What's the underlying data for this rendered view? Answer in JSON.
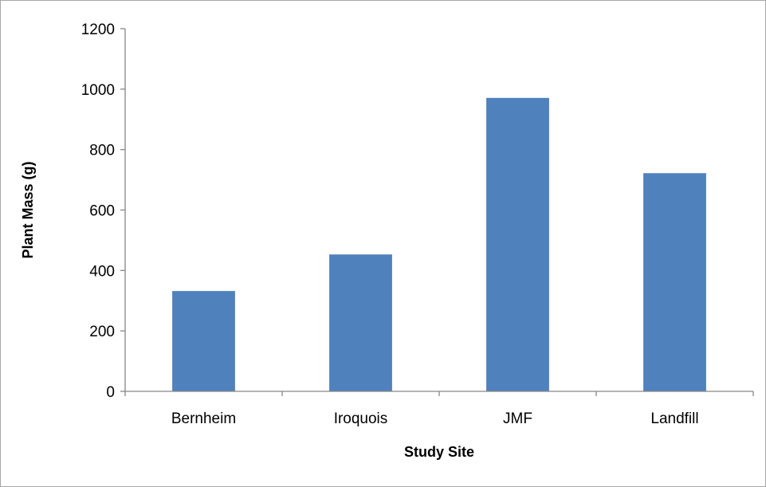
{
  "chart_data": {
    "type": "bar",
    "categories": [
      "Bernheim",
      "Iroquois",
      "JMF",
      "Landfill"
    ],
    "values": [
      332,
      453,
      971,
      722
    ],
    "xlabel": "Study Site",
    "ylabel": "Plant Mass (g)",
    "ylim": [
      0,
      1200
    ],
    "yticks": [
      0,
      200,
      400,
      600,
      800,
      1000,
      1200
    ],
    "grid": false,
    "legend": "none",
    "bar_color": "#4f81bd",
    "axis_color": "#868686"
  }
}
